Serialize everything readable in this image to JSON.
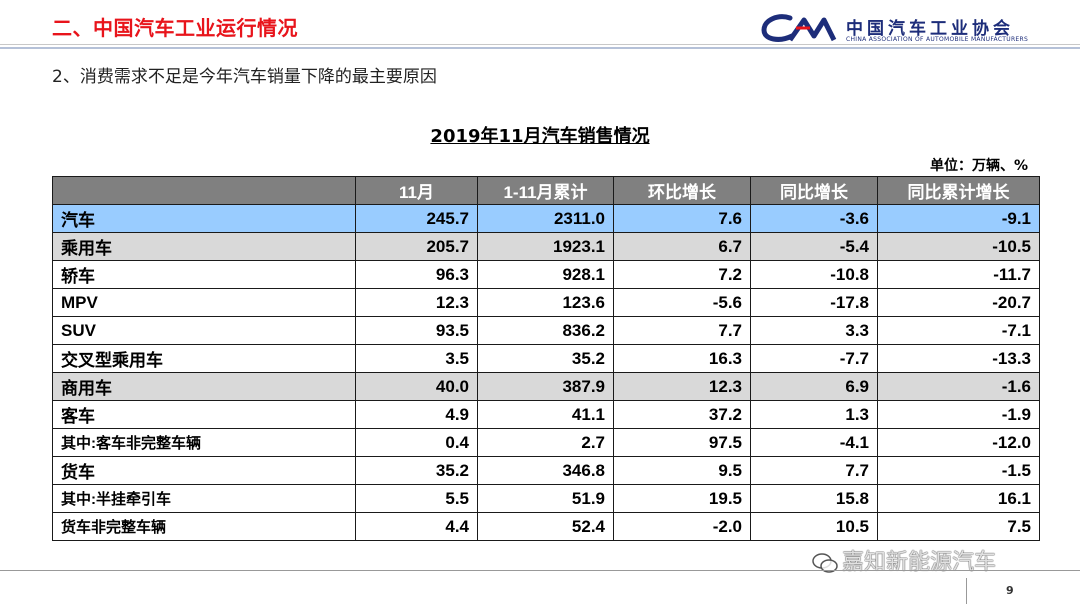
{
  "header": {
    "title": "二、中国汽车工业运行情况",
    "logo_cn": "中国汽车工业协会",
    "logo_en": "CHINA ASSOCIATION OF AUTOMOBILE MANUFACTURERS"
  },
  "subheading": "2、消费需求不足是今年汽车销量下降的最主要原因",
  "table": {
    "title": "2019年11月汽车销售情况",
    "unit": "单位：万辆、%",
    "columns": [
      "",
      "11月",
      "1-11月累计",
      "环比增长",
      "同比增长",
      "同比累计增长"
    ],
    "rows": [
      {
        "label": "汽车",
        "level": 0,
        "style": "blue",
        "values": [
          "245.7",
          "2311.0",
          "7.6",
          "-3.6",
          "-9.1"
        ]
      },
      {
        "label": "乘用车",
        "level": 1,
        "style": "gray",
        "values": [
          "205.7",
          "1923.1",
          "6.7",
          "-5.4",
          "-10.5"
        ]
      },
      {
        "label": "轿车",
        "level": 2,
        "style": "white",
        "values": [
          "96.3",
          "928.1",
          "7.2",
          "-10.8",
          "-11.7"
        ]
      },
      {
        "label": "MPV",
        "level": 2,
        "style": "white",
        "values": [
          "12.3",
          "123.6",
          "-5.6",
          "-17.8",
          "-20.7"
        ]
      },
      {
        "label": "SUV",
        "level": 2,
        "style": "white",
        "values": [
          "93.5",
          "836.2",
          "7.7",
          "3.3",
          "-7.1"
        ]
      },
      {
        "label": "交叉型乘用车",
        "level": 2,
        "style": "white",
        "values": [
          "3.5",
          "35.2",
          "16.3",
          "-7.7",
          "-13.3"
        ]
      },
      {
        "label": "商用车",
        "level": 1,
        "style": "gray",
        "values": [
          "40.0",
          "387.9",
          "12.3",
          "6.9",
          "-1.6"
        ]
      },
      {
        "label": "客车",
        "level": 2,
        "style": "white",
        "values": [
          "4.9",
          "41.1",
          "37.2",
          "1.3",
          "-1.9"
        ]
      },
      {
        "label": "其中:客车非完整车辆",
        "level": 3,
        "style": "white",
        "values": [
          "0.4",
          "2.7",
          "97.5",
          "-4.1",
          "-12.0"
        ]
      },
      {
        "label": "货车",
        "level": 2,
        "style": "white",
        "values": [
          "35.2",
          "346.8",
          "9.5",
          "7.7",
          "-1.5"
        ]
      },
      {
        "label": "其中:半挂牵引车",
        "level": 3,
        "style": "white",
        "values": [
          "5.5",
          "51.9",
          "19.5",
          "15.8",
          "16.1"
        ]
      },
      {
        "label": "货车非完整车辆",
        "level": 3,
        "style": "white",
        "values": [
          "4.4",
          "52.4",
          "-2.0",
          "10.5",
          "7.5"
        ]
      }
    ]
  },
  "watermark": "嘉知新能源汽车",
  "page_number": "9",
  "colors": {
    "title_red": "#e8141b",
    "logo_blue": "#1d2d7a",
    "header_gray": "#808080",
    "row_blue": "#99ccff",
    "row_gray": "#d9d9d9"
  }
}
